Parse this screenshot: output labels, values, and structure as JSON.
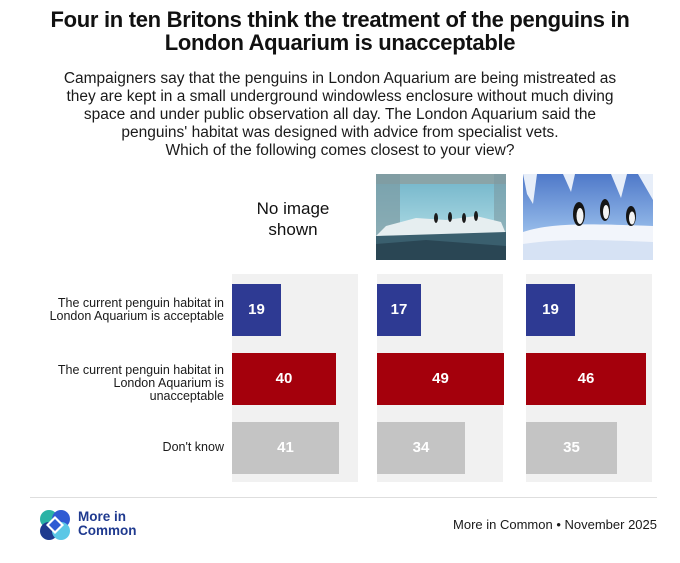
{
  "header": {
    "title_line1": "Four in ten Britons think the treatment of the penguins in",
    "title_line2": "London Aquarium is unacceptable",
    "subtitle_lines": [
      "Campaigners say that the penguins in London Aquarium are being mistreated as",
      "they are kept in a small underground windowless enclosure without much diving",
      "space and under public observation all day. The London Aquarium said the",
      "penguins' habitat was designed with advice from specialist vets.",
      "Which of the following comes closest to your view?"
    ]
  },
  "panels": {
    "no_image_line1": "No image",
    "no_image_line2": "shown"
  },
  "chart_data": {
    "type": "bar",
    "orientation": "horizontal",
    "categories": [
      "The current penguin habitat in London Aquarium is acceptable",
      "The current penguin habitat in London Aquarium is unacceptable",
      "Don't know"
    ],
    "category_lines": [
      [
        "The current penguin habitat in",
        "London Aquarium is acceptable"
      ],
      [
        "The current penguin habitat in",
        "London Aquarium is",
        "unacceptable"
      ],
      [
        "Don't know"
      ]
    ],
    "series": [
      {
        "name": "No image shown",
        "values": [
          19,
          40,
          41
        ]
      },
      {
        "name": "Image of enclosure (wide view)",
        "values": [
          17,
          49,
          34
        ]
      },
      {
        "name": "Image of enclosure (close view)",
        "values": [
          19,
          46,
          35
        ]
      }
    ],
    "colors": [
      "#2e3a93",
      "#a4000c",
      "#c4c4c4"
    ],
    "xlim": [
      0,
      100
    ],
    "title": "Four in ten Britons think the treatment of the penguins in London Aquarium is unacceptable"
  },
  "footer": {
    "logo_line1": "More in",
    "logo_line2": "Common",
    "source": "More in Common • November 2025"
  }
}
